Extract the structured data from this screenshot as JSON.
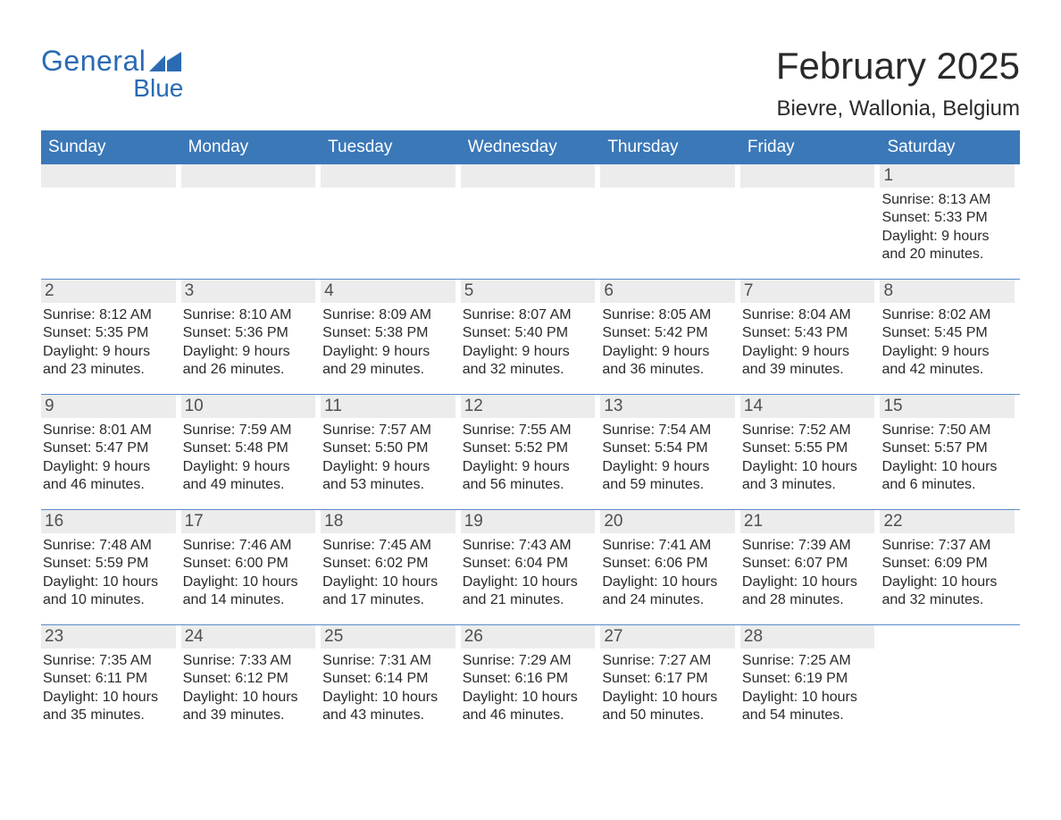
{
  "logo": {
    "general": "General",
    "blue": "Blue"
  },
  "title": {
    "month": "February 2025",
    "location": "Bievre, Wallonia, Belgium"
  },
  "colors": {
    "header_bg": "#3b78b8",
    "header_text": "#ffffff",
    "daynum_bg": "#ececec",
    "daynum_text": "#505050",
    "body_text": "#2a2a2a",
    "week_border": "#5a8cc7",
    "logo_color": "#2a6bb3"
  },
  "weekdays": [
    "Sunday",
    "Monday",
    "Tuesday",
    "Wednesday",
    "Thursday",
    "Friday",
    "Saturday"
  ],
  "calendar": {
    "type": "table",
    "start_weekday_index": 6,
    "days_in_month": 28,
    "weeks": [
      [
        null,
        null,
        null,
        null,
        null,
        null,
        {
          "n": "1",
          "sunrise": "8:13 AM",
          "sunset": "5:33 PM",
          "dl1": "Daylight: 9 hours",
          "dl2": "and 20 minutes."
        }
      ],
      [
        {
          "n": "2",
          "sunrise": "8:12 AM",
          "sunset": "5:35 PM",
          "dl1": "Daylight: 9 hours",
          "dl2": "and 23 minutes."
        },
        {
          "n": "3",
          "sunrise": "8:10 AM",
          "sunset": "5:36 PM",
          "dl1": "Daylight: 9 hours",
          "dl2": "and 26 minutes."
        },
        {
          "n": "4",
          "sunrise": "8:09 AM",
          "sunset": "5:38 PM",
          "dl1": "Daylight: 9 hours",
          "dl2": "and 29 minutes."
        },
        {
          "n": "5",
          "sunrise": "8:07 AM",
          "sunset": "5:40 PM",
          "dl1": "Daylight: 9 hours",
          "dl2": "and 32 minutes."
        },
        {
          "n": "6",
          "sunrise": "8:05 AM",
          "sunset": "5:42 PM",
          "dl1": "Daylight: 9 hours",
          "dl2": "and 36 minutes."
        },
        {
          "n": "7",
          "sunrise": "8:04 AM",
          "sunset": "5:43 PM",
          "dl1": "Daylight: 9 hours",
          "dl2": "and 39 minutes."
        },
        {
          "n": "8",
          "sunrise": "8:02 AM",
          "sunset": "5:45 PM",
          "dl1": "Daylight: 9 hours",
          "dl2": "and 42 minutes."
        }
      ],
      [
        {
          "n": "9",
          "sunrise": "8:01 AM",
          "sunset": "5:47 PM",
          "dl1": "Daylight: 9 hours",
          "dl2": "and 46 minutes."
        },
        {
          "n": "10",
          "sunrise": "7:59 AM",
          "sunset": "5:48 PM",
          "dl1": "Daylight: 9 hours",
          "dl2": "and 49 minutes."
        },
        {
          "n": "11",
          "sunrise": "7:57 AM",
          "sunset": "5:50 PM",
          "dl1": "Daylight: 9 hours",
          "dl2": "and 53 minutes."
        },
        {
          "n": "12",
          "sunrise": "7:55 AM",
          "sunset": "5:52 PM",
          "dl1": "Daylight: 9 hours",
          "dl2": "and 56 minutes."
        },
        {
          "n": "13",
          "sunrise": "7:54 AM",
          "sunset": "5:54 PM",
          "dl1": "Daylight: 9 hours",
          "dl2": "and 59 minutes."
        },
        {
          "n": "14",
          "sunrise": "7:52 AM",
          "sunset": "5:55 PM",
          "dl1": "Daylight: 10 hours",
          "dl2": "and 3 minutes."
        },
        {
          "n": "15",
          "sunrise": "7:50 AM",
          "sunset": "5:57 PM",
          "dl1": "Daylight: 10 hours",
          "dl2": "and 6 minutes."
        }
      ],
      [
        {
          "n": "16",
          "sunrise": "7:48 AM",
          "sunset": "5:59 PM",
          "dl1": "Daylight: 10 hours",
          "dl2": "and 10 minutes."
        },
        {
          "n": "17",
          "sunrise": "7:46 AM",
          "sunset": "6:00 PM",
          "dl1": "Daylight: 10 hours",
          "dl2": "and 14 minutes."
        },
        {
          "n": "18",
          "sunrise": "7:45 AM",
          "sunset": "6:02 PM",
          "dl1": "Daylight: 10 hours",
          "dl2": "and 17 minutes."
        },
        {
          "n": "19",
          "sunrise": "7:43 AM",
          "sunset": "6:04 PM",
          "dl1": "Daylight: 10 hours",
          "dl2": "and 21 minutes."
        },
        {
          "n": "20",
          "sunrise": "7:41 AM",
          "sunset": "6:06 PM",
          "dl1": "Daylight: 10 hours",
          "dl2": "and 24 minutes."
        },
        {
          "n": "21",
          "sunrise": "7:39 AM",
          "sunset": "6:07 PM",
          "dl1": "Daylight: 10 hours",
          "dl2": "and 28 minutes."
        },
        {
          "n": "22",
          "sunrise": "7:37 AM",
          "sunset": "6:09 PM",
          "dl1": "Daylight: 10 hours",
          "dl2": "and 32 minutes."
        }
      ],
      [
        {
          "n": "23",
          "sunrise": "7:35 AM",
          "sunset": "6:11 PM",
          "dl1": "Daylight: 10 hours",
          "dl2": "and 35 minutes."
        },
        {
          "n": "24",
          "sunrise": "7:33 AM",
          "sunset": "6:12 PM",
          "dl1": "Daylight: 10 hours",
          "dl2": "and 39 minutes."
        },
        {
          "n": "25",
          "sunrise": "7:31 AM",
          "sunset": "6:14 PM",
          "dl1": "Daylight: 10 hours",
          "dl2": "and 43 minutes."
        },
        {
          "n": "26",
          "sunrise": "7:29 AM",
          "sunset": "6:16 PM",
          "dl1": "Daylight: 10 hours",
          "dl2": "and 46 minutes."
        },
        {
          "n": "27",
          "sunrise": "7:27 AM",
          "sunset": "6:17 PM",
          "dl1": "Daylight: 10 hours",
          "dl2": "and 50 minutes."
        },
        {
          "n": "28",
          "sunrise": "7:25 AM",
          "sunset": "6:19 PM",
          "dl1": "Daylight: 10 hours",
          "dl2": "and 54 minutes."
        },
        null
      ]
    ]
  },
  "labels": {
    "sunrise_prefix": "Sunrise: ",
    "sunset_prefix": "Sunset: "
  }
}
